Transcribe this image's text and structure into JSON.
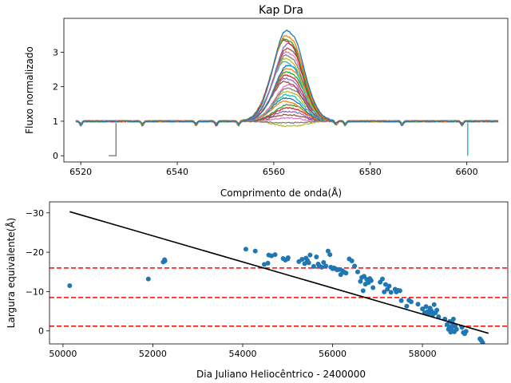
{
  "chart_data": [
    {
      "type": "line",
      "title": "Kap Dra",
      "xlabel": "Comprimento de onda(Å)",
      "ylabel": "Fluxo normalizado",
      "xlim": [
        6516.5,
        6608.5
      ],
      "ylim": [
        -0.18,
        3.98
      ],
      "xticks": [
        6520,
        6540,
        6560,
        6580,
        6600
      ],
      "yticks": [
        0,
        1,
        2,
        3
      ],
      "grid": false,
      "x_range": [
        6519,
        6606.5
      ],
      "line_center": 6563,
      "continuum": 1.0,
      "series_colors": [
        "#1f77b4",
        "#ff7f0e",
        "#2ca02c",
        "#d62728",
        "#9467bd",
        "#8c564b",
        "#e377c2",
        "#7f7f7f",
        "#bcbd22",
        "#17becf"
      ],
      "series_peaks": [
        3.75,
        3.6,
        3.5,
        3.45,
        3.35,
        3.2,
        3.1,
        3.0,
        2.9,
        2.8,
        2.7,
        2.6,
        2.5,
        2.4,
        2.3,
        2.2,
        2.1,
        2.0,
        1.9,
        1.8,
        1.7,
        1.6,
        1.5,
        1.4,
        1.3,
        1.2,
        1.1,
        0.95,
        0.85
      ],
      "absorption_lines": [
        6520,
        6532.8,
        6543.9,
        6548.1,
        6552.7,
        6572.9,
        6574.8,
        6586.6,
        6599.0
      ],
      "artifacts": [
        {
          "color": "#7f7f7f",
          "x": [
            6525.8,
            6527.3,
            6527.3
          ],
          "y": [
            0.0,
            0.0,
            0.95
          ]
        },
        {
          "color": "#17becf",
          "x": [
            6600.2,
            6600.2
          ],
          "y": [
            0.95,
            0.0
          ]
        }
      ]
    },
    {
      "type": "scatter",
      "xlabel": "Dia Juliano Heliocêntrico - 2400000",
      "ylabel": "Largura equivalente(Å)",
      "xlim": [
        49700,
        59900
      ],
      "ylim": [
        3.3,
        -32.8
      ],
      "y_inverted": true,
      "xticks": [
        50000,
        52000,
        54000,
        56000,
        58000
      ],
      "yticks": [
        0,
        -10,
        -20,
        -30
      ],
      "grid": false,
      "point_color": "#1f77b4",
      "points": [
        [
          50150,
          -11.5
        ],
        [
          51900,
          -13.2
        ],
        [
          52230,
          -17.5
        ],
        [
          52260,
          -18.1
        ],
        [
          52270,
          -17.8
        ],
        [
          54070,
          -20.8
        ],
        [
          54280,
          -20.3
        ],
        [
          54480,
          -16.9
        ],
        [
          54560,
          -17.2
        ],
        [
          54580,
          -19.3
        ],
        [
          54640,
          -19.1
        ],
        [
          54720,
          -19.4
        ],
        [
          54900,
          -18.4
        ],
        [
          54950,
          -18.0
        ],
        [
          55000,
          -18.3
        ],
        [
          55010,
          -18.6
        ],
        [
          55250,
          -17.6
        ],
        [
          55320,
          -18.2
        ],
        [
          55380,
          -17.1
        ],
        [
          55410,
          -18.5
        ],
        [
          55440,
          -17.9
        ],
        [
          55470,
          -17.3
        ],
        [
          55500,
          -19.3
        ],
        [
          55580,
          -16.4
        ],
        [
          55640,
          -18.8
        ],
        [
          55680,
          -17.0
        ],
        [
          55700,
          -16.6
        ],
        [
          55760,
          -16.2
        ],
        [
          55800,
          -17.4
        ],
        [
          55850,
          -16.5
        ],
        [
          55900,
          -20.3
        ],
        [
          55940,
          -19.4
        ],
        [
          55960,
          -16.2
        ],
        [
          56000,
          -15.8
        ],
        [
          56030,
          -16.0
        ],
        [
          56060,
          -15.8
        ],
        [
          56100,
          -15.5
        ],
        [
          56140,
          -15.6
        ],
        [
          56180,
          -14.3
        ],
        [
          56220,
          -15.3
        ],
        [
          56260,
          -14.9
        ],
        [
          56300,
          -14.7
        ],
        [
          56370,
          -18.3
        ],
        [
          56430,
          -17.8
        ],
        [
          56490,
          -16.5
        ],
        [
          56560,
          -15.0
        ],
        [
          56620,
          -12.6
        ],
        [
          56650,
          -13.6
        ],
        [
          56680,
          -10.2
        ],
        [
          56700,
          -13.9
        ],
        [
          56730,
          -11.9
        ],
        [
          56760,
          -13.1
        ],
        [
          56800,
          -12.3
        ],
        [
          56830,
          -13.3
        ],
        [
          56860,
          -12.8
        ],
        [
          56900,
          -11.0
        ],
        [
          57060,
          -12.4
        ],
        [
          57110,
          -13.2
        ],
        [
          57150,
          -9.9
        ],
        [
          57180,
          -11.8
        ],
        [
          57220,
          -10.6
        ],
        [
          57260,
          -11.4
        ],
        [
          57300,
          -9.8
        ],
        [
          57390,
          -10.6
        ],
        [
          57420,
          -9.9
        ],
        [
          57460,
          -10.3
        ],
        [
          57500,
          -10.2
        ],
        [
          57530,
          -7.7
        ],
        [
          57650,
          -6.3
        ],
        [
          57700,
          -7.8
        ],
        [
          57750,
          -7.4
        ],
        [
          57900,
          -6.8
        ],
        [
          58000,
          -5.6
        ],
        [
          58050,
          -4.6
        ],
        [
          58080,
          -6.2
        ],
        [
          58110,
          -4.9
        ],
        [
          58140,
          -4.4
        ],
        [
          58170,
          -5.8
        ],
        [
          58200,
          -5.1
        ],
        [
          58230,
          -4.1
        ],
        [
          58260,
          -6.7
        ],
        [
          58290,
          -4.6
        ],
        [
          58320,
          -5.3
        ],
        [
          58360,
          -3.6
        ],
        [
          58500,
          -3.0
        ],
        [
          58550,
          -1.6
        ],
        [
          58580,
          -0.4
        ],
        [
          58600,
          -1.0
        ],
        [
          58610,
          -2.4
        ],
        [
          58630,
          0.3
        ],
        [
          58650,
          -0.7
        ],
        [
          58670,
          -1.9
        ],
        [
          58690,
          -3.0
        ],
        [
          58710,
          0.2
        ],
        [
          58730,
          -1.3
        ],
        [
          58760,
          -0.4
        ],
        [
          58880,
          -0.9
        ],
        [
          58910,
          0.4
        ],
        [
          58940,
          0.7
        ],
        [
          58970,
          0.1
        ],
        [
          59280,
          2.0
        ],
        [
          59310,
          2.4
        ],
        [
          59340,
          3.0
        ],
        [
          59470,
          4.2
        ]
      ],
      "trend_line": {
        "color": "#000000",
        "x": [
          50150,
          59470
        ],
        "y": [
          -30.3,
          0.6
        ]
      },
      "hlines": [
        {
          "y": -16.0,
          "color": "#ff0000",
          "style": "dashed"
        },
        {
          "y": -8.5,
          "color": "#ff0000",
          "style": "dashed"
        },
        {
          "y": -1.2,
          "color": "#ff0000",
          "style": "dashed"
        }
      ]
    }
  ]
}
